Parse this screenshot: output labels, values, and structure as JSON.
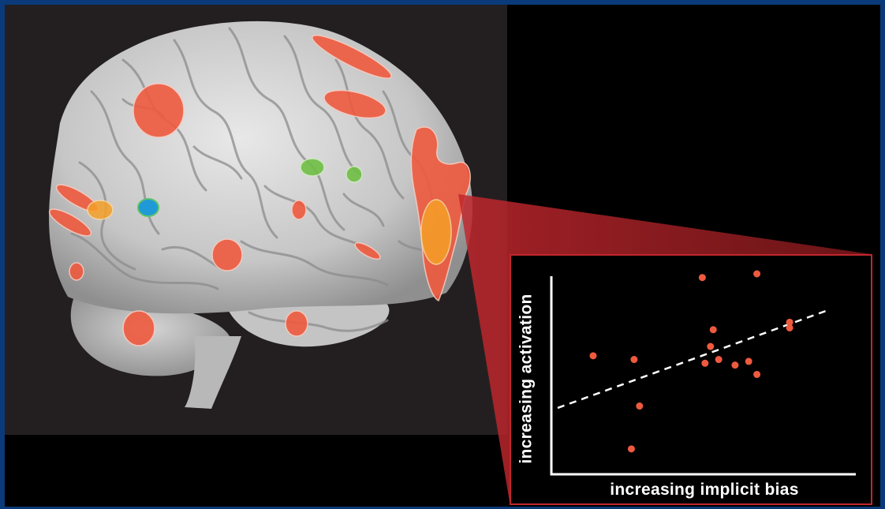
{
  "colors": {
    "frame": "#0a3a7a",
    "brain_background": "#231f20",
    "activation_red": "#ef5a3f",
    "activation_orange": "#f5a028",
    "activation_green": "#6fbf45",
    "activation_blue": "#1f9ad6",
    "inset_border": "#c1272d"
  },
  "brain": {
    "activation_regions": [
      {
        "color": "red"
      },
      {
        "color": "red"
      },
      {
        "color": "red"
      },
      {
        "color": "red"
      },
      {
        "color": "red"
      },
      {
        "color": "red"
      },
      {
        "color": "red"
      },
      {
        "color": "red"
      },
      {
        "color": "red"
      },
      {
        "color": "red"
      },
      {
        "color": "red"
      },
      {
        "color": "red"
      },
      {
        "color": "red"
      },
      {
        "color": "orange"
      },
      {
        "color": "orange"
      },
      {
        "color": "green"
      },
      {
        "color": "green"
      },
      {
        "color": "blue"
      }
    ]
  },
  "scatter": {
    "xlabel": "increasing implicit bias",
    "ylabel": "increasing activation",
    "chart_data": {
      "type": "scatter",
      "xlabel": "increasing implicit bias",
      "ylabel": "increasing activation",
      "xlim": [
        0,
        100
      ],
      "ylim": [
        0,
        100
      ],
      "points": [
        {
          "x": 13,
          "y": 56
        },
        {
          "x": 28,
          "y": 54
        },
        {
          "x": 30,
          "y": 29
        },
        {
          "x": 27,
          "y": 6
        },
        {
          "x": 53,
          "y": 98
        },
        {
          "x": 73,
          "y": 100
        },
        {
          "x": 57,
          "y": 70
        },
        {
          "x": 56,
          "y": 61
        },
        {
          "x": 54,
          "y": 52
        },
        {
          "x": 59,
          "y": 54
        },
        {
          "x": 65,
          "y": 51
        },
        {
          "x": 70,
          "y": 53
        },
        {
          "x": 73,
          "y": 46
        },
        {
          "x": 85,
          "y": 74
        },
        {
          "x": 85,
          "y": 71
        }
      ],
      "trendline": {
        "x": [
          0,
          100
        ],
        "y": [
          28,
          81
        ],
        "style": "dashed"
      },
      "grid": false
    }
  }
}
